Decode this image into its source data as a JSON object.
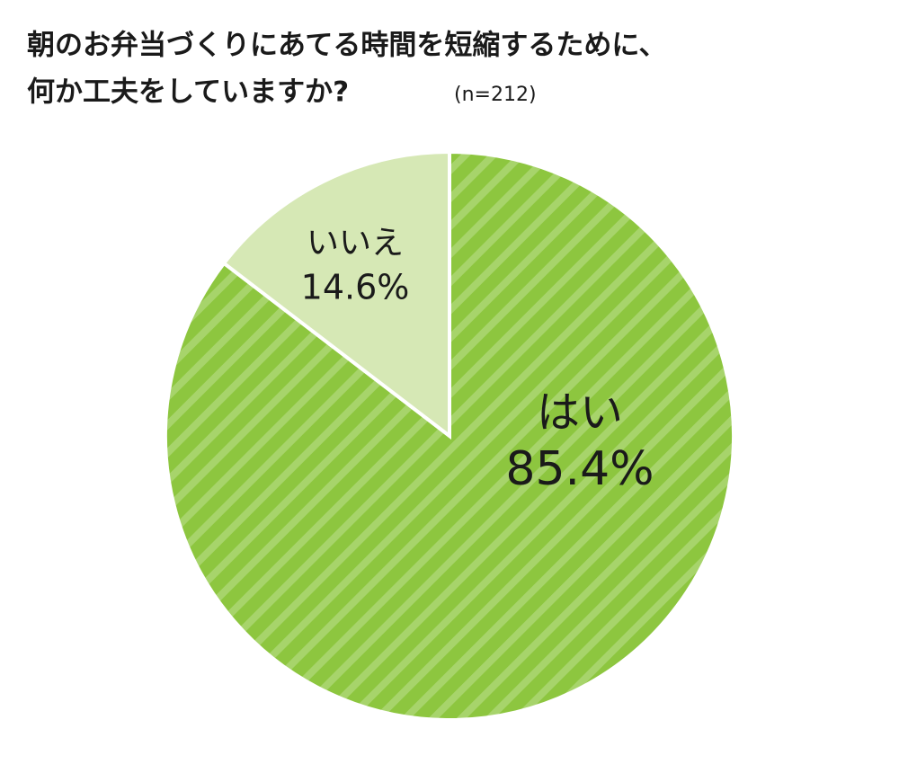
{
  "chart_data": {
    "type": "pie",
    "title": [
      "朝のお弁当づくりにあてる時間を短縮するために、",
      "何か工夫をしていますか?"
    ],
    "subtitle": "(n=212)",
    "categories": [
      "はい",
      "いいえ"
    ],
    "values": [
      85.4,
      14.6
    ],
    "value_labels": [
      "85.4%",
      "14.6%"
    ],
    "colors": [
      "#8dc63f",
      "#d6e8b5"
    ],
    "hatch": [
      "stripe",
      null
    ]
  }
}
